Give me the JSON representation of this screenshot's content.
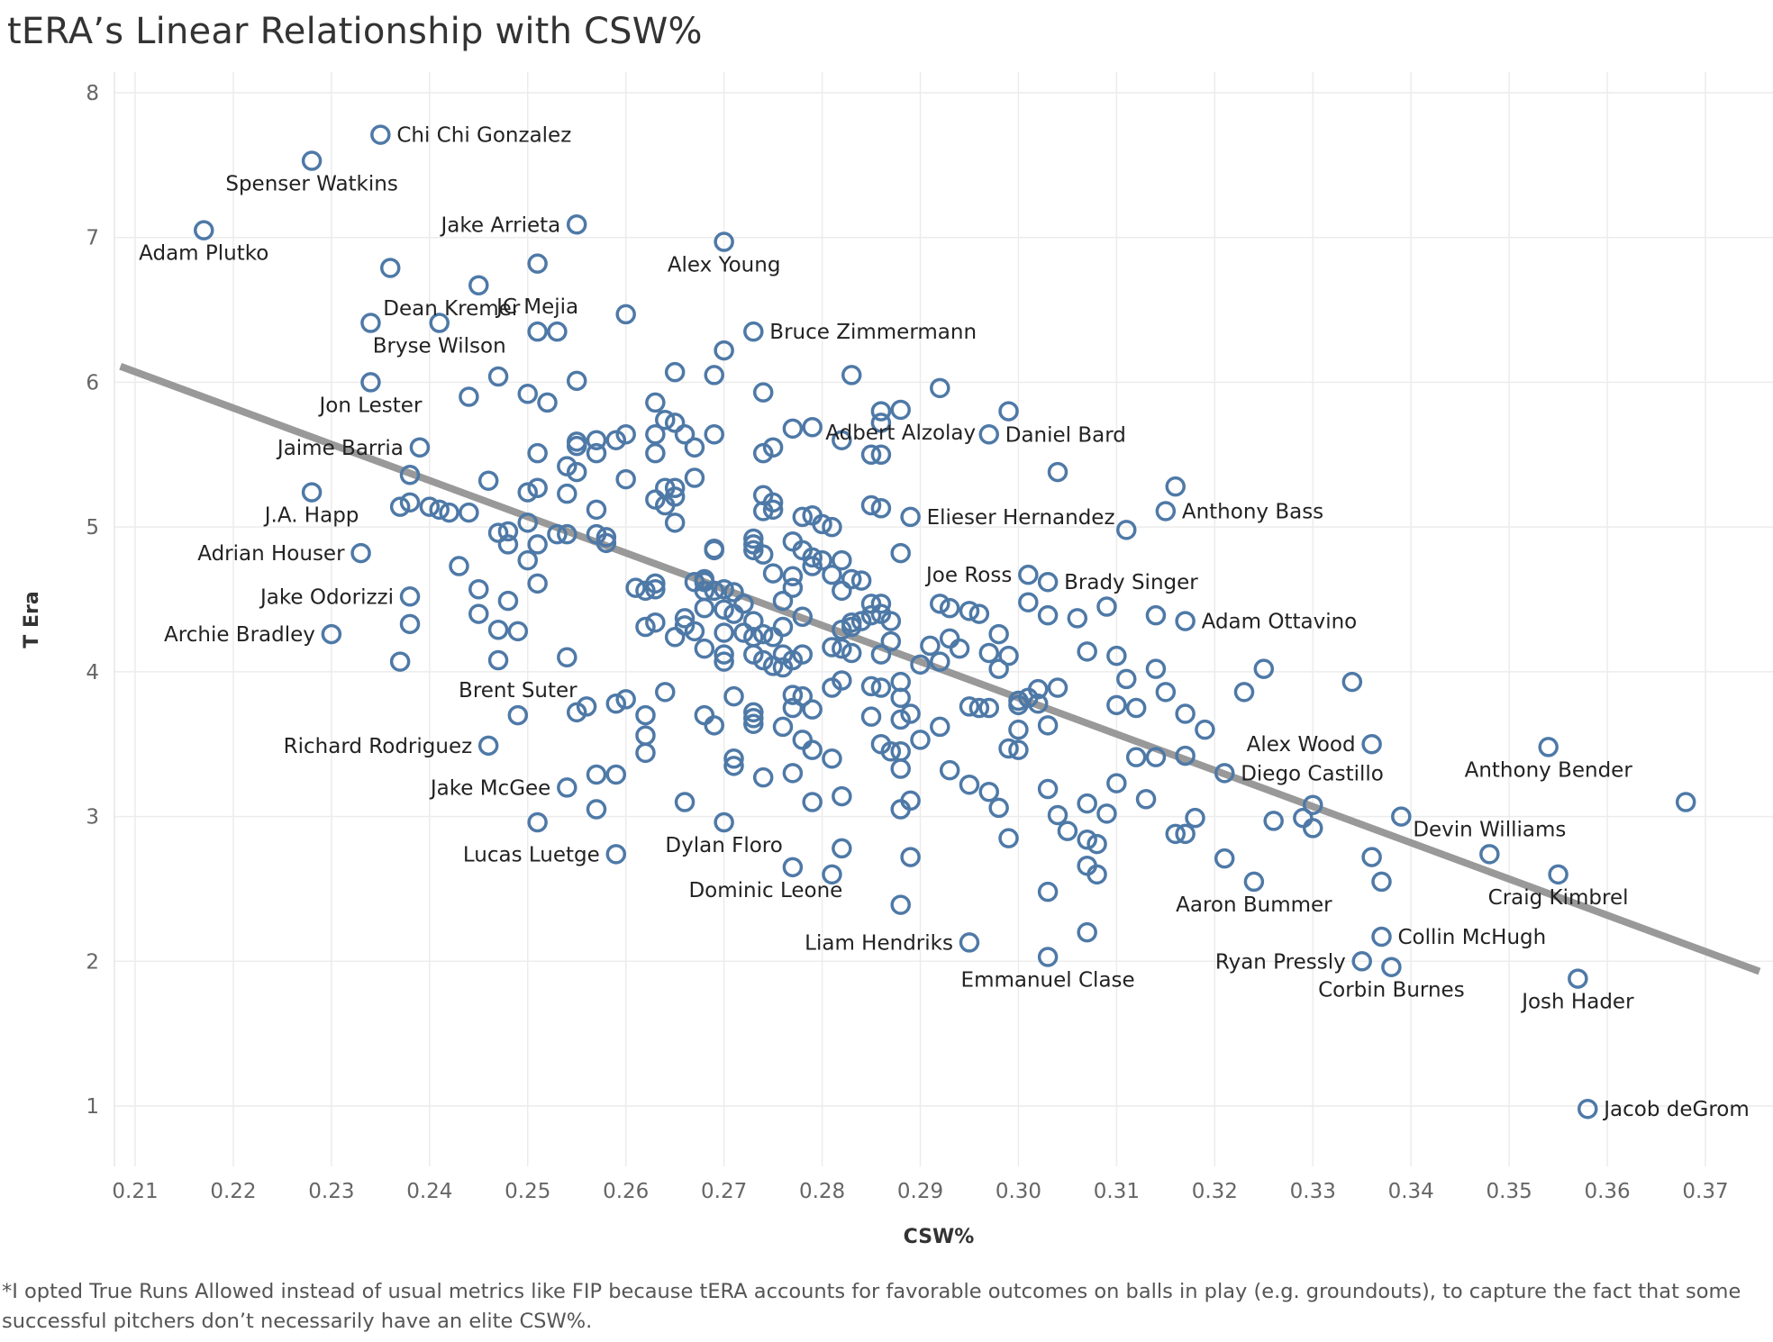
{
  "chart_data": {
    "type": "scatter",
    "title": "tERA’s Linear Relationship with CSW%",
    "xlabel": "CSW%",
    "ylabel": "T Era",
    "xlim": [
      0.2085,
      0.3755
    ],
    "ylim": [
      0.2,
      8.2
    ],
    "xticks": [
      "0.21",
      "0.22",
      "0.23",
      "0.24",
      "0.25",
      "0.26",
      "0.27",
      "0.28",
      "0.29",
      "0.30",
      "0.31",
      "0.32",
      "0.33",
      "0.34",
      "0.35",
      "0.36",
      "0.37"
    ],
    "yticks": [
      "1",
      "2",
      "3",
      "4",
      "5",
      "6",
      "7",
      "8"
    ],
    "grid": true,
    "marker_color": "#4e79a7",
    "trend_color": "#999999",
    "trendline": {
      "x": [
        0.2085,
        0.3755
      ],
      "y": [
        6.11,
        1.93
      ]
    },
    "labeled_points": [
      {
        "name": "Chi Chi Gonzalez",
        "x": 0.235,
        "y": 7.71,
        "label_side": "right"
      },
      {
        "name": "Spenser Watkins",
        "x": 0.228,
        "y": 7.53,
        "label_side": "below"
      },
      {
        "name": "Adam Plutko",
        "x": 0.217,
        "y": 7.05,
        "label_side": "below"
      },
      {
        "name": "Jake Arrieta",
        "x": 0.255,
        "y": 7.09,
        "label_side": "left"
      },
      {
        "name": "Alex Young",
        "x": 0.27,
        "y": 6.97,
        "label_side": "below"
      },
      {
        "name": "Dean Kremer",
        "x": 0.245,
        "y": 6.67,
        "label_side": "belowleft"
      },
      {
        "name": "JC Mejia",
        "x": 0.251,
        "y": 6.35,
        "label_side": "above"
      },
      {
        "name": "Bruce Zimmermann",
        "x": 0.273,
        "y": 6.35,
        "label_side": "right"
      },
      {
        "name": "Bryse Wilson",
        "x": 0.241,
        "y": 6.41,
        "label_side": "below"
      },
      {
        "name": "Jon Lester",
        "x": 0.234,
        "y": 6.0,
        "label_side": "below"
      },
      {
        "name": "Daniel Bard",
        "x": 0.297,
        "y": 5.64,
        "label_side": "right"
      },
      {
        "name": "Jaime Barria",
        "x": 0.239,
        "y": 5.55,
        "label_side": "left"
      },
      {
        "name": "Adbert Alzolay",
        "x": 0.288,
        "y": 5.81,
        "label_side": "below"
      },
      {
        "name": "Anthony Bass",
        "x": 0.315,
        "y": 5.11,
        "label_side": "right"
      },
      {
        "name": "Elieser Hernandez",
        "x": 0.289,
        "y": 5.07,
        "label_side": "right"
      },
      {
        "name": "J.A. Happ",
        "x": 0.228,
        "y": 5.24,
        "label_side": "below"
      },
      {
        "name": "Adrian Houser",
        "x": 0.233,
        "y": 4.82,
        "label_side": "left"
      },
      {
        "name": "Joe Ross",
        "x": 0.301,
        "y": 4.67,
        "label_side": "left"
      },
      {
        "name": "Brady Singer",
        "x": 0.303,
        "y": 4.62,
        "label_side": "right"
      },
      {
        "name": "Jake Odorizzi",
        "x": 0.238,
        "y": 4.52,
        "label_side": "left"
      },
      {
        "name": "Adam Ottavino",
        "x": 0.317,
        "y": 4.35,
        "label_side": "right"
      },
      {
        "name": "Archie Bradley",
        "x": 0.23,
        "y": 4.26,
        "label_side": "left"
      },
      {
        "name": "Brent Suter",
        "x": 0.249,
        "y": 3.7,
        "label_side": "above"
      },
      {
        "name": "Alex Wood",
        "x": 0.336,
        "y": 3.5,
        "label_side": "left"
      },
      {
        "name": "Richard Rodriguez",
        "x": 0.246,
        "y": 3.49,
        "label_side": "left"
      },
      {
        "name": "Diego Castillo",
        "x": 0.321,
        "y": 3.3,
        "label_side": "right"
      },
      {
        "name": "Anthony Bender",
        "x": 0.354,
        "y": 3.48,
        "label_side": "below"
      },
      {
        "name": "Jake McGee",
        "x": 0.254,
        "y": 3.2,
        "label_side": "left"
      },
      {
        "name": "Devin Williams",
        "x": 0.348,
        "y": 2.74,
        "label_side": "above"
      },
      {
        "name": "Lucas Luetge",
        "x": 0.259,
        "y": 2.74,
        "label_side": "left"
      },
      {
        "name": "Dylan Floro",
        "x": 0.27,
        "y": 2.96,
        "label_side": "below"
      },
      {
        "name": "Dominic Leone",
        "x": 0.277,
        "y": 2.65,
        "label_side": "belowleft"
      },
      {
        "name": "Aaron Bummer",
        "x": 0.324,
        "y": 2.55,
        "label_side": "below"
      },
      {
        "name": "Craig Kimbrel",
        "x": 0.355,
        "y": 2.6,
        "label_side": "below"
      },
      {
        "name": "Collin McHugh",
        "x": 0.337,
        "y": 2.17,
        "label_side": "right"
      },
      {
        "name": "Liam Hendriks",
        "x": 0.295,
        "y": 2.13,
        "label_side": "left"
      },
      {
        "name": "Ryan Pressly",
        "x": 0.335,
        "y": 2.0,
        "label_side": "left"
      },
      {
        "name": "Emmanuel Clase",
        "x": 0.303,
        "y": 2.03,
        "label_side": "below"
      },
      {
        "name": "Corbin Burnes",
        "x": 0.338,
        "y": 1.96,
        "label_side": "below"
      },
      {
        "name": "Josh Hader",
        "x": 0.357,
        "y": 1.88,
        "label_side": "below"
      },
      {
        "name": "Jacob deGrom",
        "x": 0.358,
        "y": 0.98,
        "label_side": "right"
      }
    ],
    "unlabeled_points": [
      [
        0.236,
        6.79
      ],
      [
        0.251,
        6.82
      ],
      [
        0.26,
        6.47
      ],
      [
        0.234,
        6.41
      ],
      [
        0.253,
        6.35
      ],
      [
        0.27,
        6.22
      ],
      [
        0.283,
        6.05
      ],
      [
        0.265,
        6.07
      ],
      [
        0.269,
        6.05
      ],
      [
        0.247,
        6.04
      ],
      [
        0.255,
        6.01
      ],
      [
        0.274,
        5.93
      ],
      [
        0.292,
        5.96
      ],
      [
        0.25,
        5.92
      ],
      [
        0.252,
        5.86
      ],
      [
        0.244,
        5.9
      ],
      [
        0.263,
        5.86
      ],
      [
        0.286,
        5.8
      ],
      [
        0.299,
        5.8
      ],
      [
        0.264,
        5.74
      ],
      [
        0.265,
        5.72
      ],
      [
        0.286,
        5.72
      ],
      [
        0.277,
        5.68
      ],
      [
        0.279,
        5.69
      ],
      [
        0.257,
        5.6
      ],
      [
        0.26,
        5.64
      ],
      [
        0.263,
        5.64
      ],
      [
        0.266,
        5.64
      ],
      [
        0.269,
        5.64
      ],
      [
        0.255,
        5.59
      ],
      [
        0.255,
        5.56
      ],
      [
        0.259,
        5.6
      ],
      [
        0.267,
        5.55
      ],
      [
        0.275,
        5.55
      ],
      [
        0.282,
        5.6
      ],
      [
        0.251,
        5.51
      ],
      [
        0.257,
        5.51
      ],
      [
        0.263,
        5.51
      ],
      [
        0.274,
        5.51
      ],
      [
        0.285,
        5.5
      ],
      [
        0.286,
        5.5
      ],
      [
        0.304,
        5.38
      ],
      [
        0.254,
        5.42
      ],
      [
        0.255,
        5.38
      ],
      [
        0.238,
        5.36
      ],
      [
        0.26,
        5.33
      ],
      [
        0.267,
        5.34
      ],
      [
        0.246,
        5.32
      ],
      [
        0.316,
        5.28
      ],
      [
        0.25,
        5.24
      ],
      [
        0.251,
        5.27
      ],
      [
        0.254,
        5.23
      ],
      [
        0.264,
        5.27
      ],
      [
        0.265,
        5.27
      ],
      [
        0.263,
        5.19
      ],
      [
        0.265,
        5.21
      ],
      [
        0.274,
        5.22
      ],
      [
        0.275,
        5.17
      ],
      [
        0.238,
        5.17
      ],
      [
        0.237,
        5.14
      ],
      [
        0.24,
        5.14
      ],
      [
        0.241,
        5.12
      ],
      [
        0.242,
        5.1
      ],
      [
        0.244,
        5.1
      ],
      [
        0.257,
        5.12
      ],
      [
        0.264,
        5.15
      ],
      [
        0.274,
        5.11
      ],
      [
        0.275,
        5.12
      ],
      [
        0.278,
        5.07
      ],
      [
        0.279,
        5.08
      ],
      [
        0.28,
        5.02
      ],
      [
        0.281,
        5.0
      ],
      [
        0.285,
        5.15
      ],
      [
        0.286,
        5.13
      ],
      [
        0.265,
        5.03
      ],
      [
        0.25,
        5.03
      ],
      [
        0.253,
        4.95
      ],
      [
        0.254,
        4.95
      ],
      [
        0.247,
        4.96
      ],
      [
        0.248,
        4.97
      ],
      [
        0.257,
        4.95
      ],
      [
        0.258,
        4.93
      ],
      [
        0.258,
        4.89
      ],
      [
        0.248,
        4.88
      ],
      [
        0.25,
        4.77
      ],
      [
        0.251,
        4.88
      ],
      [
        0.273,
        4.92
      ],
      [
        0.273,
        4.88
      ],
      [
        0.273,
        4.84
      ],
      [
        0.269,
        4.85
      ],
      [
        0.269,
        4.84
      ],
      [
        0.274,
        4.81
      ],
      [
        0.277,
        4.9
      ],
      [
        0.278,
        4.84
      ],
      [
        0.279,
        4.79
      ],
      [
        0.28,
        4.77
      ],
      [
        0.282,
        4.77
      ],
      [
        0.288,
        4.82
      ],
      [
        0.311,
        4.98
      ],
      [
        0.243,
        4.73
      ],
      [
        0.251,
        4.61
      ],
      [
        0.245,
        4.57
      ],
      [
        0.248,
        4.49
      ],
      [
        0.245,
        4.4
      ],
      [
        0.261,
        4.58
      ],
      [
        0.262,
        4.56
      ],
      [
        0.263,
        4.61
      ],
      [
        0.263,
        4.57
      ],
      [
        0.268,
        4.62
      ],
      [
        0.267,
        4.62
      ],
      [
        0.268,
        4.64
      ],
      [
        0.268,
        4.56
      ],
      [
        0.269,
        4.56
      ],
      [
        0.27,
        4.57
      ],
      [
        0.271,
        4.55
      ],
      [
        0.272,
        4.47
      ],
      [
        0.275,
        4.68
      ],
      [
        0.277,
        4.66
      ],
      [
        0.277,
        4.58
      ],
      [
        0.279,
        4.73
      ],
      [
        0.281,
        4.67
      ],
      [
        0.283,
        4.64
      ],
      [
        0.282,
        4.56
      ],
      [
        0.284,
        4.63
      ],
      [
        0.276,
        4.49
      ],
      [
        0.278,
        4.38
      ],
      [
        0.27,
        4.43
      ],
      [
        0.271,
        4.4
      ],
      [
        0.273,
        4.35
      ],
      [
        0.268,
        4.44
      ],
      [
        0.266,
        4.37
      ],
      [
        0.266,
        4.32
      ],
      [
        0.267,
        4.28
      ],
      [
        0.265,
        4.24
      ],
      [
        0.263,
        4.34
      ],
      [
        0.262,
        4.31
      ],
      [
        0.276,
        4.31
      ],
      [
        0.27,
        4.27
      ],
      [
        0.272,
        4.27
      ],
      [
        0.273,
        4.24
      ],
      [
        0.274,
        4.26
      ],
      [
        0.275,
        4.24
      ],
      [
        0.285,
        4.47
      ],
      [
        0.286,
        4.47
      ],
      [
        0.286,
        4.4
      ],
      [
        0.283,
        4.31
      ],
      [
        0.282,
        4.29
      ],
      [
        0.283,
        4.34
      ],
      [
        0.284,
        4.35
      ],
      [
        0.285,
        4.39
      ],
      [
        0.287,
        4.35
      ],
      [
        0.287,
        4.21
      ],
      [
        0.286,
        4.12
      ],
      [
        0.281,
        4.17
      ],
      [
        0.282,
        4.16
      ],
      [
        0.283,
        4.13
      ],
      [
        0.278,
        4.12
      ],
      [
        0.276,
        4.12
      ],
      [
        0.277,
        4.08
      ],
      [
        0.276,
        4.03
      ],
      [
        0.275,
        4.04
      ],
      [
        0.273,
        4.12
      ],
      [
        0.274,
        4.08
      ],
      [
        0.27,
        4.12
      ],
      [
        0.27,
        4.07
      ],
      [
        0.268,
        4.16
      ],
      [
        0.292,
        4.47
      ],
      [
        0.293,
        4.44
      ],
      [
        0.295,
        4.42
      ],
      [
        0.296,
        4.4
      ],
      [
        0.298,
        4.26
      ],
      [
        0.297,
        4.13
      ],
      [
        0.299,
        4.11
      ],
      [
        0.292,
        4.07
      ],
      [
        0.29,
        4.05
      ],
      [
        0.294,
        4.16
      ],
      [
        0.293,
        4.23
      ],
      [
        0.291,
        4.18
      ],
      [
        0.298,
        4.02
      ],
      [
        0.303,
        4.39
      ],
      [
        0.306,
        4.37
      ],
      [
        0.309,
        4.45
      ],
      [
        0.314,
        4.39
      ],
      [
        0.307,
        4.14
      ],
      [
        0.31,
        4.11
      ],
      [
        0.301,
        4.48
      ],
      [
        0.237,
        4.07
      ],
      [
        0.247,
        4.08
      ],
      [
        0.254,
        4.1
      ],
      [
        0.238,
        4.33
      ],
      [
        0.247,
        4.29
      ],
      [
        0.249,
        4.28
      ],
      [
        0.259,
        3.78
      ],
      [
        0.26,
        3.81
      ],
      [
        0.262,
        3.7
      ],
      [
        0.262,
        3.56
      ],
      [
        0.262,
        3.44
      ],
      [
        0.264,
        3.86
      ],
      [
        0.255,
        3.72
      ],
      [
        0.256,
        3.76
      ],
      [
        0.268,
        3.7
      ],
      [
        0.269,
        3.63
      ],
      [
        0.271,
        3.83
      ],
      [
        0.273,
        3.72
      ],
      [
        0.273,
        3.68
      ],
      [
        0.273,
        3.64
      ],
      [
        0.276,
        3.62
      ],
      [
        0.277,
        3.84
      ],
      [
        0.278,
        3.83
      ],
      [
        0.277,
        3.75
      ],
      [
        0.279,
        3.74
      ],
      [
        0.281,
        3.89
      ],
      [
        0.282,
        3.94
      ],
      [
        0.285,
        3.9
      ],
      [
        0.286,
        3.89
      ],
      [
        0.288,
        3.93
      ],
      [
        0.288,
        3.82
      ],
      [
        0.288,
        3.67
      ],
      [
        0.285,
        3.69
      ],
      [
        0.289,
        3.71
      ],
      [
        0.292,
        3.62
      ],
      [
        0.29,
        3.53
      ],
      [
        0.286,
        3.5
      ],
      [
        0.287,
        3.45
      ],
      [
        0.288,
        3.45
      ],
      [
        0.288,
        3.33
      ],
      [
        0.295,
        3.76
      ],
      [
        0.296,
        3.75
      ],
      [
        0.297,
        3.75
      ],
      [
        0.3,
        3.8
      ],
      [
        0.3,
        3.77
      ],
      [
        0.301,
        3.82
      ],
      [
        0.302,
        3.88
      ],
      [
        0.304,
        3.89
      ],
      [
        0.302,
        3.78
      ],
      [
        0.303,
        3.63
      ],
      [
        0.3,
        3.6
      ],
      [
        0.299,
        3.47
      ],
      [
        0.3,
        3.46
      ],
      [
        0.311,
        3.95
      ],
      [
        0.314,
        4.02
      ],
      [
        0.315,
        3.86
      ],
      [
        0.31,
        3.77
      ],
      [
        0.312,
        3.75
      ],
      [
        0.317,
        3.71
      ],
      [
        0.319,
        3.6
      ],
      [
        0.323,
        3.86
      ],
      [
        0.325,
        4.02
      ],
      [
        0.334,
        3.93
      ],
      [
        0.312,
        3.41
      ],
      [
        0.314,
        3.41
      ],
      [
        0.317,
        3.42
      ],
      [
        0.293,
        3.32
      ],
      [
        0.295,
        3.22
      ],
      [
        0.297,
        3.17
      ],
      [
        0.298,
        3.06
      ],
      [
        0.299,
        2.85
      ],
      [
        0.303,
        3.19
      ],
      [
        0.304,
        3.01
      ],
      [
        0.305,
        2.9
      ],
      [
        0.307,
        3.09
      ],
      [
        0.309,
        3.02
      ],
      [
        0.31,
        3.23
      ],
      [
        0.313,
        3.12
      ],
      [
        0.307,
        2.84
      ],
      [
        0.308,
        2.81
      ],
      [
        0.307,
        2.66
      ],
      [
        0.308,
        2.6
      ],
      [
        0.316,
        2.88
      ],
      [
        0.317,
        2.88
      ],
      [
        0.318,
        2.99
      ],
      [
        0.326,
        2.97
      ],
      [
        0.329,
        2.99
      ],
      [
        0.33,
        2.92
      ],
      [
        0.33,
        3.08
      ],
      [
        0.339,
        3.0
      ],
      [
        0.336,
        2.72
      ],
      [
        0.337,
        2.55
      ],
      [
        0.321,
        2.71
      ],
      [
        0.303,
        2.48
      ],
      [
        0.307,
        2.2
      ],
      [
        0.368,
        3.1
      ],
      [
        0.288,
        3.05
      ],
      [
        0.289,
        3.11
      ],
      [
        0.289,
        2.72
      ],
      [
        0.288,
        2.39
      ],
      [
        0.282,
        3.14
      ],
      [
        0.279,
        3.1
      ],
      [
        0.281,
        3.4
      ],
      [
        0.277,
        3.3
      ],
      [
        0.278,
        3.53
      ],
      [
        0.279,
        3.46
      ],
      [
        0.282,
        2.78
      ],
      [
        0.281,
        2.6
      ],
      [
        0.266,
        3.1
      ],
      [
        0.271,
        3.4
      ],
      [
        0.271,
        3.35
      ],
      [
        0.274,
        3.27
      ],
      [
        0.259,
        3.29
      ],
      [
        0.257,
        3.29
      ],
      [
        0.257,
        3.05
      ],
      [
        0.251,
        2.96
      ]
    ]
  },
  "footnote": "*I opted True Runs Allowed instead of usual metrics like FIP because tERA accounts for favorable outcomes on balls in play (e.g. groundouts), to capture the fact that some successful pitchers don’t necessarily have an elite CSW%."
}
